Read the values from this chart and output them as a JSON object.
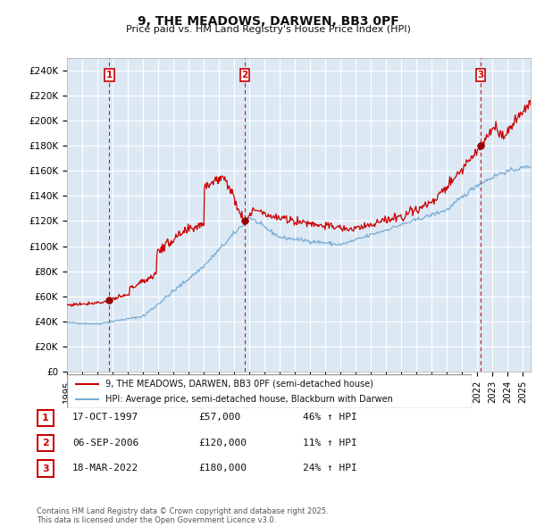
{
  "title": "9, THE MEADOWS, DARWEN, BB3 0PF",
  "subtitle": "Price paid vs. HM Land Registry's House Price Index (HPI)",
  "ylim": [
    0,
    250000
  ],
  "yticks": [
    0,
    20000,
    40000,
    60000,
    80000,
    100000,
    120000,
    140000,
    160000,
    180000,
    200000,
    220000,
    240000
  ],
  "ytick_labels": [
    "£0",
    "£20K",
    "£40K",
    "£60K",
    "£80K",
    "£100K",
    "£120K",
    "£140K",
    "£160K",
    "£180K",
    "£200K",
    "£220K",
    "£240K"
  ],
  "xlim_start": 1995.0,
  "xlim_end": 2025.5,
  "sale1_date": 1997.79,
  "sale1_price": 57000,
  "sale1_label": "1",
  "sale1_text": "17-OCT-1997",
  "sale1_amount": "£57,000",
  "sale1_hpi": "46% ↑ HPI",
  "sale2_date": 2006.68,
  "sale2_price": 120000,
  "sale2_label": "2",
  "sale2_text": "06-SEP-2006",
  "sale2_amount": "£120,000",
  "sale2_hpi": "11% ↑ HPI",
  "sale3_date": 2022.21,
  "sale3_price": 180000,
  "sale3_label": "3",
  "sale3_text": "18-MAR-2022",
  "sale3_amount": "£180,000",
  "sale3_hpi": "24% ↑ HPI",
  "line1_color": "#cc0000",
  "line2_color": "#7aadd4",
  "vline_color": "#cc0000",
  "legend1_label": "9, THE MEADOWS, DARWEN, BB3 0PF (semi-detached house)",
  "legend2_label": "HPI: Average price, semi-detached house, Blackburn with Darwen",
  "footer": "Contains HM Land Registry data © Crown copyright and database right 2025.\nThis data is licensed under the Open Government Licence v3.0.",
  "chart_bg": "#dce9f5",
  "fig_bg": "#ffffff",
  "grid_color": "#ffffff"
}
